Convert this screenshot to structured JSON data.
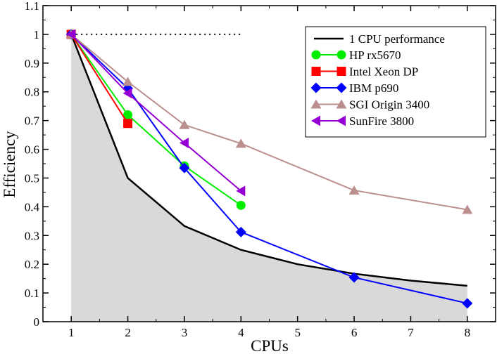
{
  "chart_data": {
    "type": "line",
    "title": "",
    "xlabel": "CPUs",
    "ylabel": "Efficiency",
    "xlim": [
      0.5,
      8.5
    ],
    "ylim": [
      0,
      1.1
    ],
    "xticks": [
      "1",
      "2",
      "3",
      "4",
      "5",
      "6",
      "7",
      "8"
    ],
    "yticks": [
      "0",
      "0.1",
      "0.2",
      "0.3",
      "0.4",
      "0.5",
      "0.6",
      "0.7",
      "0.8",
      "0.9",
      "1",
      "1.1"
    ],
    "grid": false,
    "legend_position": "top-right",
    "reference_line": {
      "name": "1 CPU performance",
      "x": [
        1,
        2,
        3,
        4,
        5,
        6,
        7,
        8
      ],
      "y": [
        1.0,
        0.5,
        0.333,
        0.25,
        0.2,
        0.167,
        0.143,
        0.125
      ],
      "color": "#000000",
      "fill": "#d9d9d9"
    },
    "ideal_line": {
      "y": 1.0,
      "x": [
        1,
        4
      ],
      "style": "dotted"
    },
    "series": [
      {
        "name": "HP rx5670",
        "marker": "circle",
        "color": "#00ee00",
        "x": [
          1,
          2,
          3,
          4
        ],
        "y": [
          1.0,
          0.72,
          0.542,
          0.405
        ]
      },
      {
        "name": "Intel Xeon DP",
        "marker": "square",
        "color": "#ff0000",
        "x": [
          1,
          2
        ],
        "y": [
          1.0,
          0.69
        ]
      },
      {
        "name": "IBM p690",
        "marker": "diamond",
        "color": "#0000ff",
        "x": [
          1,
          2,
          3,
          4,
          6,
          8
        ],
        "y": [
          1.0,
          0.812,
          0.535,
          0.312,
          0.154,
          0.064
        ]
      },
      {
        "name": "SGI Origin 3400",
        "marker": "triangle-up",
        "color": "#bc8f8f",
        "x": [
          1,
          2,
          3,
          4,
          6,
          8
        ],
        "y": [
          1.0,
          0.835,
          0.685,
          0.62,
          0.457,
          0.39
        ]
      },
      {
        "name": "SunFire 3800",
        "marker": "triangle-left",
        "color": "#9400d3",
        "x": [
          1,
          2,
          3,
          4
        ],
        "y": [
          1.0,
          0.795,
          0.622,
          0.455
        ]
      }
    ]
  }
}
